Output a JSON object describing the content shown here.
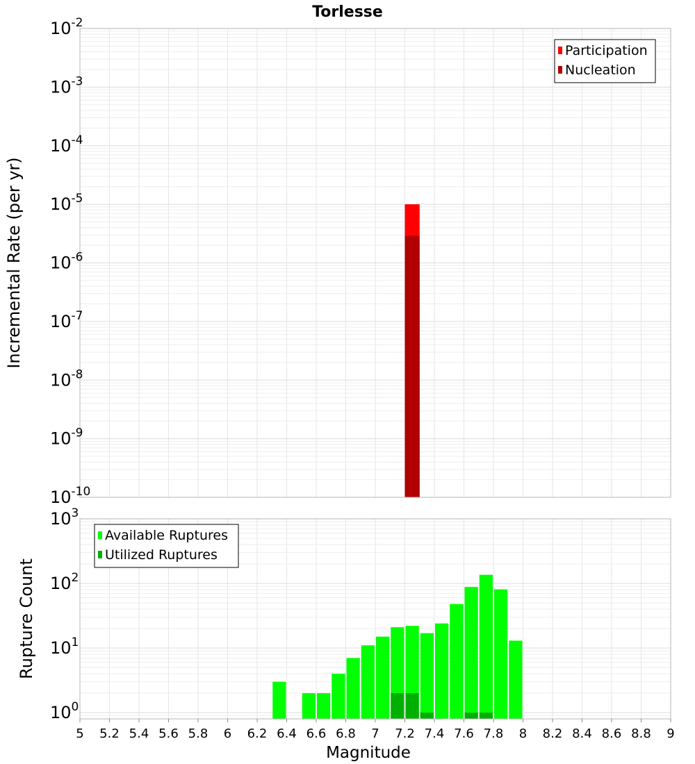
{
  "chart_data": [
    {
      "type": "bar",
      "title": "Torlesse",
      "xlabel": "",
      "ylabel": "Incremental Rate (per yr)",
      "yscale": "log",
      "ylim": [
        1e-10,
        0.01
      ],
      "xlim": [
        5,
        9
      ],
      "bin_width": 0.1,
      "ytick_labels": [
        {
          "base": "10",
          "exp": "-10",
          "value": 1e-10
        },
        {
          "base": "10",
          "exp": "-9",
          "value": 1e-09
        },
        {
          "base": "10",
          "exp": "-8",
          "value": 1e-08
        },
        {
          "base": "10",
          "exp": "-7",
          "value": 1e-07
        },
        {
          "base": "10",
          "exp": "-6",
          "value": 1e-06
        },
        {
          "base": "10",
          "exp": "-5",
          "value": 1e-05
        },
        {
          "base": "10",
          "exp": "-4",
          "value": 0.0001
        },
        {
          "base": "10",
          "exp": "-3",
          "value": 0.001
        },
        {
          "base": "10",
          "exp": "-2",
          "value": 0.01
        }
      ],
      "legend_position": "top-right",
      "grid": true,
      "series": [
        {
          "name": "Participation",
          "color": "#ff0000",
          "x": [
            7.25
          ],
          "values": [
            1e-05
          ]
        },
        {
          "name": "Nucleation",
          "color": "#b00000",
          "x": [
            7.25
          ],
          "values": [
            2.9e-06
          ]
        }
      ]
    },
    {
      "type": "bar",
      "title": "",
      "xlabel": "Magnitude",
      "ylabel": "Rupture Count",
      "yscale": "log",
      "ylim": [
        0.8,
        1000
      ],
      "xlim": [
        5,
        9
      ],
      "bin_width": 0.1,
      "xtick_labels": [
        "5",
        "5.2",
        "5.4",
        "5.6",
        "5.8",
        "6",
        "6.2",
        "6.4",
        "6.6",
        "6.8",
        "7",
        "7.2",
        "7.4",
        "7.6",
        "7.8",
        "8",
        "8.2",
        "8.4",
        "8.6",
        "8.8",
        "9"
      ],
      "ytick_labels": [
        {
          "base": "10",
          "exp": "0",
          "value": 1
        },
        {
          "base": "10",
          "exp": "1",
          "value": 10
        },
        {
          "base": "10",
          "exp": "2",
          "value": 100
        },
        {
          "base": "10",
          "exp": "3",
          "value": 1000
        }
      ],
      "legend_position": "top-left",
      "grid": true,
      "series": [
        {
          "name": "Available Ruptures",
          "color": "#00ff00",
          "x": [
            6.35,
            6.55,
            6.65,
            6.75,
            6.85,
            6.95,
            7.05,
            7.15,
            7.25,
            7.35,
            7.45,
            7.55,
            7.65,
            7.75,
            7.85,
            7.95
          ],
          "values": [
            3,
            2,
            2,
            4,
            7,
            11,
            15,
            21,
            22,
            17,
            24,
            48,
            88,
            136,
            81,
            13
          ]
        },
        {
          "name": "Utilized Ruptures",
          "color": "#00b000",
          "x": [
            7.15,
            7.25,
            7.35,
            7.65,
            7.75
          ],
          "values": [
            2,
            2,
            1,
            1,
            1
          ]
        }
      ]
    }
  ]
}
